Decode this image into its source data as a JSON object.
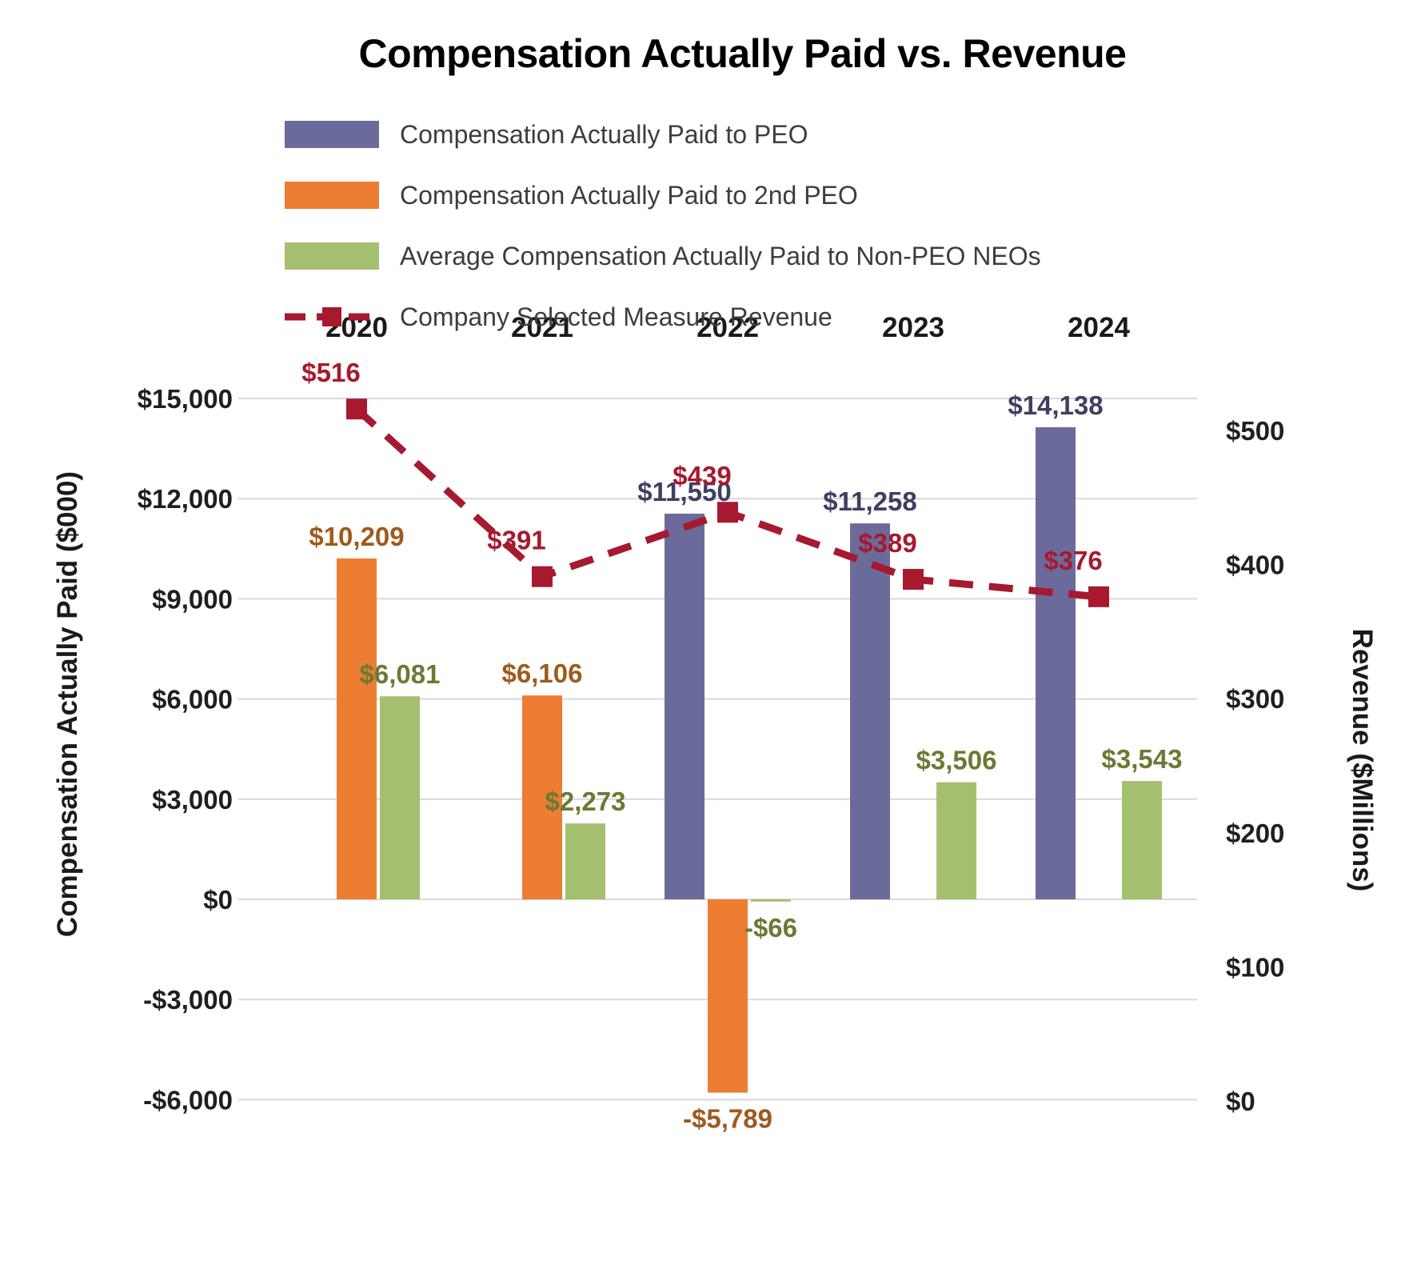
{
  "title": "Compensation Actually Paid vs. Revenue",
  "legend": {
    "items": [
      {
        "label": "Compensation Actually Paid to PEO",
        "color": "#6B6B9B",
        "type": "bar"
      },
      {
        "label": "Compensation Actually Paid to 2nd PEO",
        "color": "#ED7D31",
        "type": "bar"
      },
      {
        "label": "Average Compensation Actually Paid to Non-PEO NEOs",
        "color": "#A4BF6E",
        "type": "bar"
      },
      {
        "label": "Company Selected Measure Revenue",
        "color": "#A6192E",
        "type": "dashed-line"
      }
    ]
  },
  "chart_data": {
    "type": "bar",
    "subtype": "combo bar + dashed line, dual axis",
    "categories": [
      "2020",
      "2021",
      "2022",
      "2023",
      "2024"
    ],
    "series": [
      {
        "name": "Compensation Actually Paid to PEO",
        "type": "bar",
        "axis": "left",
        "color": "#6B6B9B",
        "label_color": "#3F3F63",
        "values": [
          null,
          null,
          11550,
          11258,
          14138
        ],
        "labels": [
          "",
          "",
          "$11,550",
          "$11,258",
          "$14,138"
        ]
      },
      {
        "name": "Compensation Actually Paid to 2nd PEO",
        "type": "bar",
        "axis": "left",
        "color": "#ED7D31",
        "label_color": "#9E5A1E",
        "values": [
          10209,
          6106,
          -5789,
          null,
          null
        ],
        "labels": [
          "$10,209",
          "$6,106",
          "-$5,789",
          "",
          ""
        ]
      },
      {
        "name": "Average Compensation Actually Paid to Non-PEO NEOs",
        "type": "bar",
        "axis": "left",
        "color": "#A4BF6E",
        "label_color": "#6A7A34",
        "values": [
          6081,
          2273,
          -66,
          3506,
          3543
        ],
        "labels": [
          "$6,081",
          "$2,273",
          "-$66",
          "$3,506",
          "$3,543"
        ]
      },
      {
        "name": "Company Selected Measure Revenue",
        "type": "line",
        "axis": "right",
        "color": "#A6192E",
        "label_color": "#A6192E",
        "values": [
          516,
          391,
          439,
          389,
          376
        ],
        "labels": [
          "$516",
          "$391",
          "$439",
          "$389",
          "$376"
        ]
      }
    ],
    "left_axis": {
      "title": "Compensation Actually Paid ($000)",
      "min": -6000,
      "max": 15000,
      "step": 3000,
      "tick_labels": [
        "$15,000",
        "$12,000",
        "$9,000",
        "$6,000",
        "$3,000",
        "$0",
        "-$3,000",
        "-$6,000"
      ]
    },
    "right_axis": {
      "title": "Revenue ($Millions)",
      "min": 0,
      "max": 500,
      "step": 100,
      "tick_labels": [
        "$500",
        "$400",
        "$300",
        "$200",
        "$100",
        "$0"
      ]
    },
    "grid": true,
    "gridline_color": "#D9D9D9",
    "legend_position": "top-left"
  }
}
